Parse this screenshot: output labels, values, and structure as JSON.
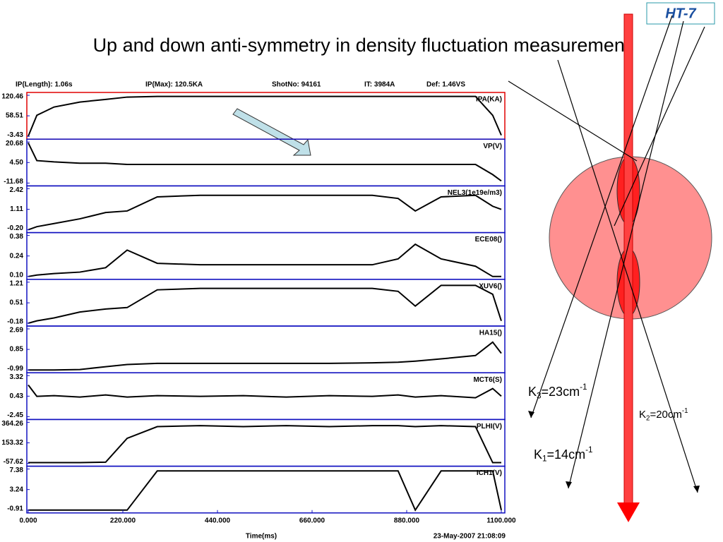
{
  "badge": "HT-7",
  "title": "Up  and down anti-symmetry in density fluctuation measurement",
  "header": [
    "IP(Length): 1.06s",
    "IP(Max): 120.5KA",
    "ShotNo: 94161",
    "IT:  3984A",
    "Def: 1.46VS"
  ],
  "chart_data": {
    "type": "line",
    "x": [
      0,
      20,
      60,
      120,
      180,
      230,
      300,
      400,
      500,
      600,
      700,
      800,
      860,
      900,
      960,
      1040,
      1080,
      1100
    ],
    "xlim": [
      0,
      1100
    ],
    "xticks": [
      {
        "value": 0,
        "label": "0.000"
      },
      {
        "value": 220,
        "label": "220.000"
      },
      {
        "value": 440,
        "label": "440.000"
      },
      {
        "value": 660,
        "label": "660.000"
      },
      {
        "value": 880,
        "label": "880.000"
      },
      {
        "value": 1100,
        "label": "1100.000"
      }
    ],
    "x_label": "Time(ms)",
    "timestamp": "23-May-2007 21:08:09",
    "panels": [
      {
        "name": "IPA(KA)",
        "color": "#000000",
        "ylim": [
          -3.43,
          120.46
        ],
        "yticks": [
          120.46,
          58.51,
          -3.43
        ],
        "values": [
          -3,
          60,
          85,
          100,
          108,
          115,
          117,
          117,
          117,
          117,
          117,
          117,
          117,
          117,
          117,
          117,
          60,
          0
        ]
      },
      {
        "name": "VP(V)",
        "color": "#000000",
        "ylim": [
          -11.68,
          20.68
        ],
        "yticks": [
          20.68,
          {
            "value": 4.5,
            "label": "4.50"
          },
          -11.68
        ],
        "values": [
          20,
          6,
          5,
          4,
          4,
          3,
          3,
          3,
          3,
          3,
          3,
          3,
          3,
          3,
          3,
          3,
          -5,
          -10
        ]
      },
      {
        "name": "NEL3(1e19e/m3)",
        "color": "#000000",
        "ylim": [
          -0.2,
          2.42
        ],
        "yticks": [
          2.42,
          1.11,
          {
            "value": -0.2,
            "label": "-0.20"
          }
        ],
        "values": [
          -0.2,
          0,
          0.2,
          0.5,
          0.9,
          1.0,
          1.9,
          2.0,
          2.0,
          2.0,
          2.0,
          2.0,
          1.8,
          1.0,
          1.9,
          2.0,
          1.3,
          1.1
        ]
      },
      {
        "name": "ECE08()",
        "color": "#000000",
        "ylim": [
          0.1,
          0.38
        ],
        "yticks": [
          0.38,
          0.24,
          {
            "value": 0.1,
            "label": "0.10"
          }
        ],
        "values": [
          0.1,
          0.11,
          0.12,
          0.13,
          0.16,
          0.28,
          0.19,
          0.18,
          0.18,
          0.18,
          0.18,
          0.18,
          0.22,
          0.32,
          0.22,
          0.17,
          0.1,
          0.1
        ]
      },
      {
        "name": "XUV6()",
        "color": "#000000",
        "ylim": [
          -0.18,
          1.21
        ],
        "yticks": [
          1.21,
          0.51,
          -0.18
        ],
        "values": [
          -0.18,
          -0.1,
          0,
          0.2,
          0.3,
          0.35,
          0.95,
          1.0,
          1.0,
          1.0,
          1.0,
          1.0,
          0.9,
          0.4,
          1.1,
          1.1,
          0.8,
          -0.1
        ]
      },
      {
        "name": "HA15()",
        "color": "#000000",
        "ylim": [
          -0.99,
          2.69
        ],
        "yticks": [
          2.69,
          0.85,
          -0.99
        ],
        "values": [
          -0.99,
          -0.99,
          -0.99,
          -0.95,
          -0.7,
          -0.5,
          -0.4,
          -0.4,
          -0.4,
          -0.4,
          -0.4,
          -0.35,
          -0.3,
          -0.2,
          0,
          0.3,
          1.5,
          0.5
        ]
      },
      {
        "name": "MCT6(S)",
        "color": "#000000",
        "ylim": [
          -2.45,
          3.32
        ],
        "yticks": [
          3.32,
          0.43,
          -2.45
        ],
        "values": [
          2,
          0.4,
          0.5,
          0.3,
          0.6,
          0.3,
          0.5,
          0.4,
          0.5,
          0.3,
          0.5,
          0.4,
          0.6,
          0.3,
          0.5,
          0.2,
          1.5,
          0.43
        ]
      },
      {
        "name": "PLHI(V)",
        "color": "#000000",
        "ylim": [
          -57.62,
          364.26
        ],
        "yticks": [
          364.26,
          153.32,
          -57.62
        ],
        "values": [
          -50,
          -50,
          -50,
          -50,
          -45,
          200,
          320,
          330,
          320,
          330,
          320,
          330,
          330,
          320,
          330,
          320,
          -50,
          -50
        ]
      },
      {
        "name": "ICH1(V)",
        "color": "#000000",
        "ylim": [
          -0.91,
          7.38
        ],
        "yticks": [
          7.38,
          3.24,
          -0.91
        ],
        "values": [
          -0.91,
          -0.91,
          -0.91,
          -0.91,
          -0.91,
          -0.91,
          7,
          7,
          7,
          7,
          7,
          7,
          7,
          -0.91,
          7,
          7,
          7,
          -0.91
        ]
      }
    ]
  },
  "beams": [
    {
      "k": "K",
      "sub": "3",
      "eq": "=23cm",
      "sup": "-1"
    },
    {
      "k": "K",
      "sub": "2",
      "eq": "=20cm",
      "sup": "-1"
    },
    {
      "k": "K",
      "sub": "1",
      "eq": "=14cm",
      "sup": "-1"
    }
  ]
}
